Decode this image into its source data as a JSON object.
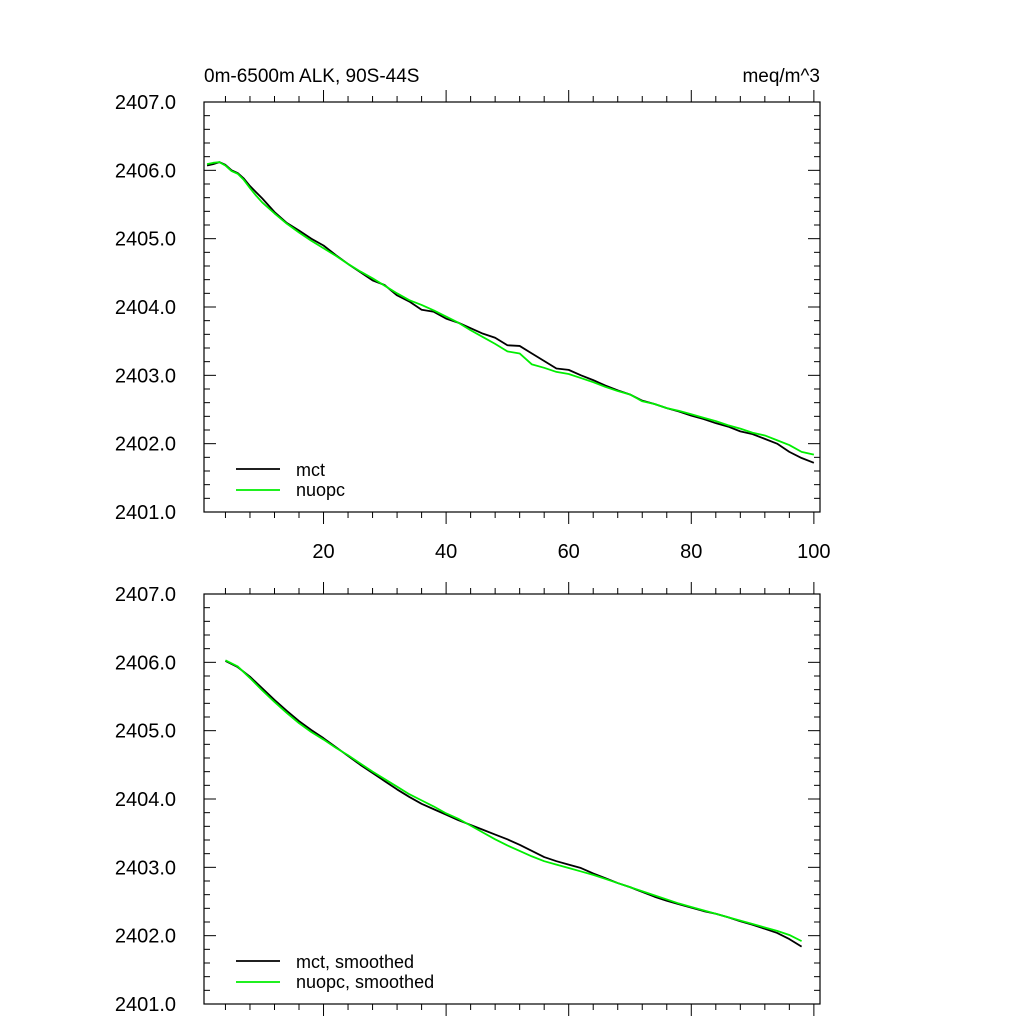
{
  "colors": {
    "mct": "#000000",
    "nuopc": "#00ee00"
  },
  "chart_data": [
    {
      "type": "line",
      "title_left": "0m-6500m ALK, 90S-44S",
      "title_right": "meq/m^3",
      "xlim": [
        0.5,
        101
      ],
      "ylim": [
        2401.0,
        2407.0
      ],
      "x_ticks": [
        20,
        40,
        60,
        80,
        100
      ],
      "x_tick_labels": [
        "20",
        "40",
        "60",
        "80",
        "100"
      ],
      "y_ticks": [
        2401.0,
        2402.0,
        2403.0,
        2404.0,
        2405.0,
        2406.0,
        2407.0
      ],
      "y_tick_labels": [
        "2401.0",
        "2402.0",
        "2403.0",
        "2404.0",
        "2405.0",
        "2406.0",
        "2407.0"
      ],
      "legend_position": "bottom-left",
      "series": [
        {
          "name": "mct",
          "color": "#000000",
          "x": [
            1,
            2,
            3,
            4,
            5,
            6,
            7,
            8,
            9,
            10,
            12,
            14,
            16,
            18,
            20,
            22,
            24,
            26,
            28,
            30,
            32,
            34,
            36,
            38,
            40,
            42,
            44,
            46,
            48,
            50,
            52,
            54,
            56,
            58,
            60,
            62,
            64,
            66,
            68,
            70,
            72,
            74,
            76,
            78,
            80,
            82,
            84,
            86,
            88,
            90,
            92,
            94,
            96,
            98,
            100
          ],
          "y": [
            2406.07,
            2406.09,
            2406.12,
            2406.08,
            2406.0,
            2405.96,
            2405.88,
            2405.77,
            2405.68,
            2405.59,
            2405.39,
            2405.23,
            2405.12,
            2405.0,
            2404.9,
            2404.76,
            2404.63,
            2404.51,
            2404.39,
            2404.32,
            2404.17,
            2404.08,
            2403.96,
            2403.93,
            2403.83,
            2403.77,
            2403.69,
            2403.61,
            2403.55,
            2403.44,
            2403.43,
            2403.32,
            2403.21,
            2403.1,
            2403.08,
            2403.0,
            2402.93,
            2402.85,
            2402.78,
            2402.72,
            2402.63,
            2402.58,
            2402.52,
            2402.47,
            2402.41,
            2402.36,
            2402.3,
            2402.25,
            2402.18,
            2402.14,
            2402.07,
            2402.0,
            2401.88,
            2401.79,
            2401.72
          ]
        },
        {
          "name": "nuopc",
          "color": "#00ee00",
          "x": [
            1,
            2,
            3,
            4,
            5,
            6,
            7,
            8,
            9,
            10,
            12,
            14,
            16,
            18,
            20,
            22,
            24,
            26,
            28,
            30,
            32,
            34,
            36,
            38,
            40,
            42,
            44,
            46,
            48,
            50,
            52,
            54,
            56,
            58,
            60,
            62,
            64,
            66,
            68,
            70,
            72,
            74,
            76,
            78,
            80,
            82,
            84,
            86,
            88,
            90,
            92,
            94,
            96,
            98,
            100
          ],
          "y": [
            2406.09,
            2406.11,
            2406.12,
            2406.07,
            2405.99,
            2405.95,
            2405.86,
            2405.74,
            2405.63,
            2405.53,
            2405.37,
            2405.22,
            2405.09,
            2404.97,
            2404.86,
            2404.75,
            2404.63,
            2404.52,
            2404.42,
            2404.31,
            2404.2,
            2404.1,
            2404.03,
            2403.95,
            2403.86,
            2403.77,
            2403.66,
            2403.56,
            2403.46,
            2403.35,
            2403.32,
            2403.16,
            2403.11,
            2403.05,
            2403.02,
            2402.96,
            2402.9,
            2402.83,
            2402.77,
            2402.72,
            2402.62,
            2402.58,
            2402.52,
            2402.48,
            2402.43,
            2402.38,
            2402.33,
            2402.27,
            2402.22,
            2402.16,
            2402.12,
            2402.05,
            2401.98,
            2401.88,
            2401.84
          ]
        }
      ]
    },
    {
      "type": "line",
      "xlim": [
        0.5,
        101
      ],
      "ylim": [
        2401.0,
        2407.0
      ],
      "x_ticks": [
        20,
        40,
        60,
        80,
        100
      ],
      "y_ticks": [
        2401.0,
        2402.0,
        2403.0,
        2404.0,
        2405.0,
        2406.0,
        2407.0
      ],
      "y_tick_labels": [
        "2401.0",
        "2402.0",
        "2403.0",
        "2404.0",
        "2405.0",
        "2406.0",
        "2407.0"
      ],
      "legend_position": "bottom-left",
      "series": [
        {
          "name": "mct, smoothed",
          "color": "#000000",
          "x": [
            4,
            6,
            8,
            10,
            12,
            14,
            16,
            18,
            20,
            22,
            24,
            26,
            28,
            30,
            32,
            34,
            36,
            38,
            40,
            42,
            44,
            46,
            48,
            50,
            52,
            54,
            56,
            58,
            60,
            62,
            64,
            66,
            68,
            70,
            72,
            74,
            76,
            78,
            80,
            82,
            84,
            86,
            88,
            90,
            92,
            94,
            96,
            98
          ],
          "y": [
            2406.02,
            2405.93,
            2405.79,
            2405.62,
            2405.45,
            2405.29,
            2405.14,
            2405.01,
            2404.89,
            2404.76,
            2404.63,
            2404.5,
            2404.38,
            2404.26,
            2404.14,
            2404.03,
            2403.93,
            2403.85,
            2403.77,
            2403.69,
            2403.62,
            2403.55,
            2403.48,
            2403.41,
            2403.33,
            2403.24,
            2403.15,
            2403.09,
            2403.04,
            2402.99,
            2402.91,
            2402.84,
            2402.77,
            2402.71,
            2402.64,
            2402.57,
            2402.51,
            2402.46,
            2402.41,
            2402.36,
            2402.32,
            2402.27,
            2402.21,
            2402.16,
            2402.1,
            2402.04,
            2401.95,
            2401.84
          ]
        },
        {
          "name": "nuopc, smoothed",
          "color": "#00ee00",
          "x": [
            4,
            6,
            8,
            10,
            12,
            14,
            16,
            18,
            20,
            22,
            24,
            26,
            28,
            30,
            32,
            34,
            36,
            38,
            40,
            42,
            44,
            46,
            48,
            50,
            52,
            54,
            56,
            58,
            60,
            62,
            64,
            66,
            68,
            70,
            72,
            74,
            76,
            78,
            80,
            82,
            84,
            86,
            88,
            90,
            92,
            94,
            96,
            98
          ],
          "y": [
            2406.03,
            2405.94,
            2405.77,
            2405.59,
            2405.42,
            2405.26,
            2405.11,
            2404.98,
            2404.87,
            2404.75,
            2404.64,
            2404.52,
            2404.4,
            2404.29,
            2404.18,
            2404.07,
            2403.98,
            2403.89,
            2403.79,
            2403.71,
            2403.61,
            2403.51,
            2403.41,
            2403.32,
            2403.24,
            2403.16,
            2403.09,
            2403.04,
            2402.99,
            2402.94,
            2402.89,
            2402.83,
            2402.77,
            2402.71,
            2402.65,
            2402.59,
            2402.53,
            2402.47,
            2402.42,
            2402.37,
            2402.32,
            2402.27,
            2402.22,
            2402.17,
            2402.12,
            2402.07,
            2402.01,
            2401.92
          ]
        }
      ]
    }
  ]
}
